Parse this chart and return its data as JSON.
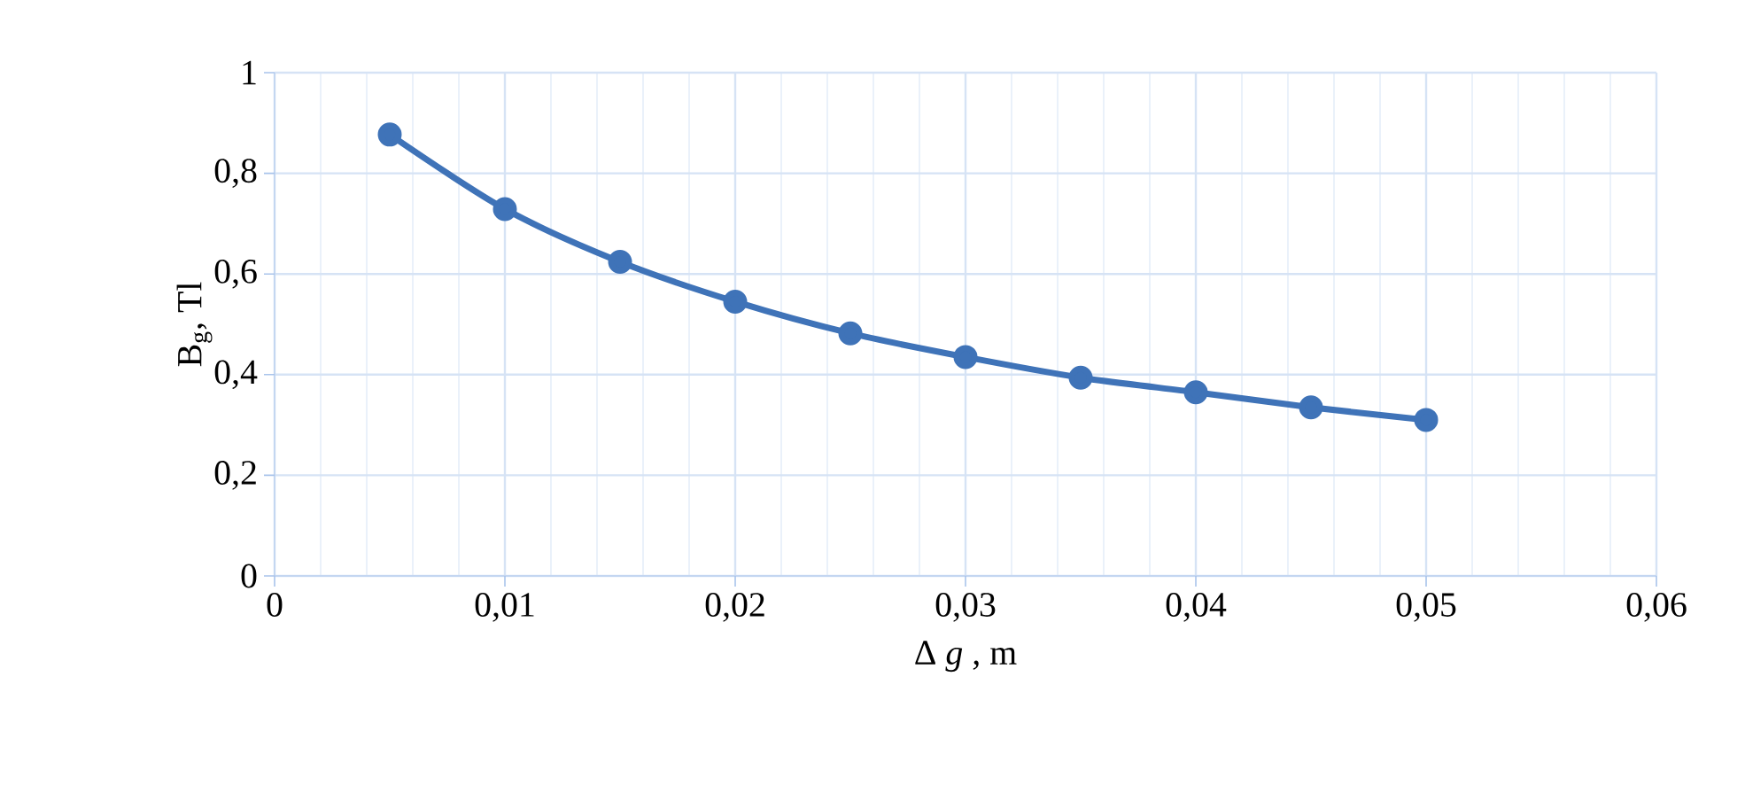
{
  "chart_data": {
    "type": "line",
    "xlabel": "Δ *g* , m",
    "ylabel": "B$_{g}$, Tl",
    "x": [
      0.005,
      0.01,
      0.015,
      0.02,
      0.025,
      0.03,
      0.035,
      0.04,
      0.045,
      0.05
    ],
    "series": [
      {
        "color": "#3f73b8",
        "values": [
          0.877,
          0.729,
          0.624,
          0.545,
          0.482,
          0.435,
          0.394,
          0.365,
          0.335,
          0.31
        ]
      }
    ],
    "xlim": [
      0,
      0.06
    ],
    "ylim": [
      0,
      1
    ],
    "xticks": [
      0,
      {
        "value": 0.01,
        "label": "0,01"
      },
      {
        "value": 0.02,
        "label": "0,02"
      },
      {
        "value": 0.03,
        "label": "0,03"
      },
      {
        "value": 0.04,
        "label": "0,04"
      },
      {
        "value": 0.05,
        "label": "0,05"
      },
      {
        "value": 0.06,
        "label": "0,06"
      }
    ],
    "yticks": [
      0,
      {
        "value": 0.2,
        "label": "0,2"
      },
      {
        "value": 0.4,
        "label": "0,4"
      },
      {
        "value": 0.6,
        "label": "0,6"
      },
      {
        "value": 0.8,
        "label": "0,8"
      },
      1
    ],
    "grid": true,
    "marker": "circle",
    "line_style": "solid"
  }
}
